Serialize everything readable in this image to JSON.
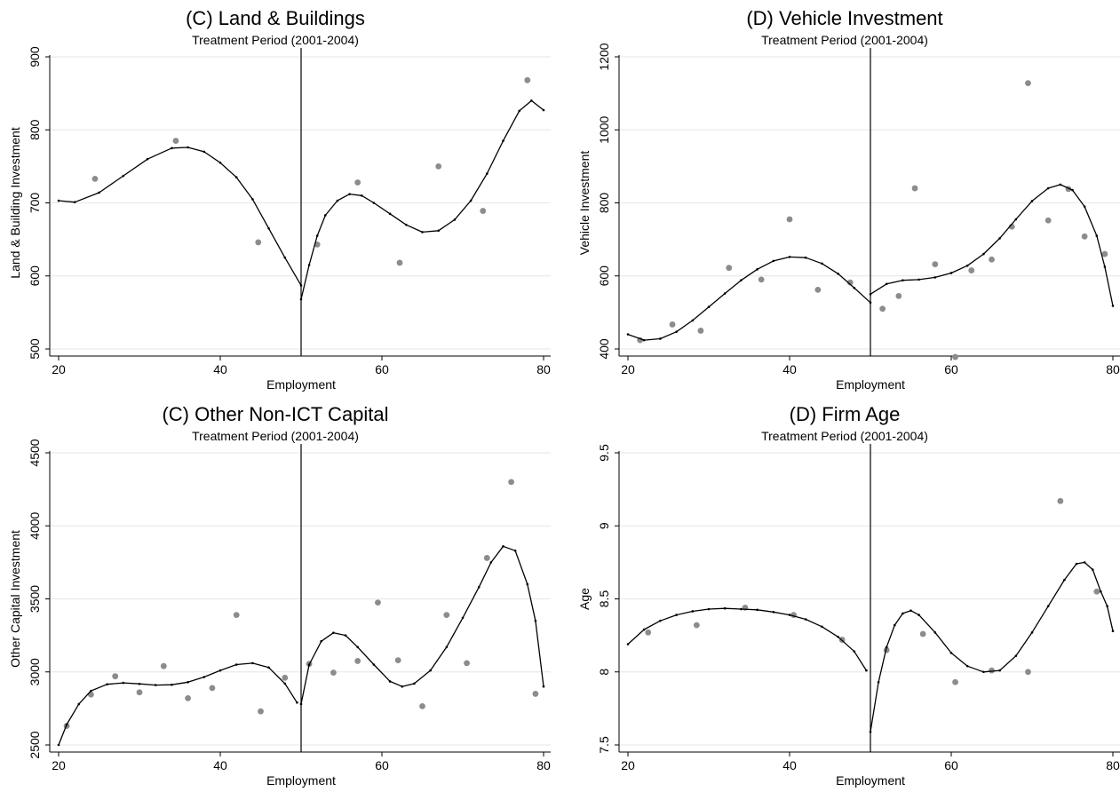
{
  "chart_data": [
    {
      "type": "scatter",
      "title": "(C) Land & Buildings",
      "subtitle": "Treatment Period (2001-2004)",
      "xlabel": "Employment",
      "ylabel": "Land & Building Investment",
      "xlim": [
        20,
        80
      ],
      "ylim": [
        500,
        900
      ],
      "xticks": [
        20,
        40,
        60,
        80
      ],
      "yticks": [
        500,
        600,
        700,
        800,
        900
      ],
      "cutoff": 50,
      "grid": true,
      "points": [
        [
          24.5,
          733
        ],
        [
          34.5,
          785
        ],
        [
          44.7,
          646
        ],
        [
          52,
          643
        ],
        [
          57,
          728
        ],
        [
          62.2,
          618
        ],
        [
          67,
          750
        ],
        [
          72.5,
          689
        ],
        [
          78,
          868
        ]
      ],
      "fit_left": [
        [
          20,
          703
        ],
        [
          22,
          701
        ],
        [
          25,
          714
        ],
        [
          28,
          737
        ],
        [
          31,
          760
        ],
        [
          34,
          775
        ],
        [
          36,
          776
        ],
        [
          38,
          770
        ],
        [
          40,
          755
        ],
        [
          42,
          735
        ],
        [
          44,
          705
        ],
        [
          46,
          665
        ],
        [
          48,
          625
        ],
        [
          50,
          587
        ]
      ],
      "fit_right": [
        [
          50,
          568
        ],
        [
          51,
          615
        ],
        [
          52,
          655
        ],
        [
          53,
          683
        ],
        [
          54.5,
          703
        ],
        [
          56,
          712
        ],
        [
          57.5,
          710
        ],
        [
          59,
          700
        ],
        [
          61,
          685
        ],
        [
          63,
          670
        ],
        [
          65,
          660
        ],
        [
          67,
          662
        ],
        [
          69,
          677
        ],
        [
          71,
          703
        ],
        [
          73,
          740
        ],
        [
          75,
          785
        ],
        [
          77,
          826
        ],
        [
          78.5,
          840
        ],
        [
          80,
          827
        ]
      ]
    },
    {
      "type": "scatter",
      "title": "(D) Vehicle Investment",
      "subtitle": "Treatment Period (2001-2004)",
      "xlabel": "Employment",
      "ylabel": "Vehicle Investment",
      "xlim": [
        20,
        80
      ],
      "ylim": [
        400,
        1200
      ],
      "xticks": [
        20,
        40,
        60,
        80
      ],
      "yticks": [
        400,
        600,
        800,
        1000,
        1200
      ],
      "cutoff": 50,
      "grid": true,
      "points": [
        [
          21.5,
          424
        ],
        [
          25.5,
          467
        ],
        [
          29,
          450
        ],
        [
          32.5,
          622
        ],
        [
          36.5,
          590
        ],
        [
          40,
          755
        ],
        [
          43.5,
          562
        ],
        [
          47.5,
          582
        ],
        [
          51.5,
          510
        ],
        [
          53.5,
          545
        ],
        [
          55.5,
          840
        ],
        [
          58,
          632
        ],
        [
          60.5,
          378
        ],
        [
          62.5,
          615
        ],
        [
          65,
          645
        ],
        [
          67.5,
          735
        ],
        [
          69.5,
          1128
        ],
        [
          72,
          752
        ],
        [
          74.5,
          838
        ],
        [
          76.5,
          708
        ],
        [
          79,
          660
        ]
      ],
      "fit_left": [
        [
          20,
          440
        ],
        [
          22,
          424
        ],
        [
          24,
          428
        ],
        [
          26,
          447
        ],
        [
          28,
          478
        ],
        [
          30,
          515
        ],
        [
          32,
          552
        ],
        [
          34,
          588
        ],
        [
          36,
          618
        ],
        [
          38,
          641
        ],
        [
          40,
          652
        ],
        [
          42,
          650
        ],
        [
          44,
          634
        ],
        [
          46,
          606
        ],
        [
          48,
          567
        ],
        [
          50,
          527
        ]
      ],
      "fit_right": [
        [
          50,
          550
        ],
        [
          52,
          578
        ],
        [
          54,
          588
        ],
        [
          56,
          590
        ],
        [
          58,
          596
        ],
        [
          60,
          608
        ],
        [
          62,
          628
        ],
        [
          64,
          660
        ],
        [
          66,
          703
        ],
        [
          68,
          755
        ],
        [
          70,
          805
        ],
        [
          72,
          840
        ],
        [
          73.5,
          850
        ],
        [
          75,
          835
        ],
        [
          76.5,
          790
        ],
        [
          78,
          710
        ],
        [
          79,
          625
        ],
        [
          80,
          518
        ]
      ]
    },
    {
      "type": "scatter",
      "title": "(C) Other Non-ICT Capital",
      "subtitle": "Treatment Period (2001-2004)",
      "xlabel": "Employment",
      "ylabel": "Other Capital Investment",
      "xlim": [
        20,
        80
      ],
      "ylim": [
        2500,
        4500
      ],
      "xticks": [
        20,
        40,
        60,
        80
      ],
      "yticks": [
        2500,
        3000,
        3500,
        4000,
        4500
      ],
      "cutoff": 50,
      "grid": true,
      "points": [
        [
          21,
          2630
        ],
        [
          24,
          2845
        ],
        [
          27,
          2970
        ],
        [
          30,
          2860
        ],
        [
          33,
          3040
        ],
        [
          36,
          2820
        ],
        [
          39,
          2890
        ],
        [
          42,
          3390
        ],
        [
          45,
          2730
        ],
        [
          48,
          2960
        ],
        [
          51,
          3055
        ],
        [
          54,
          2995
        ],
        [
          57,
          3075
        ],
        [
          59.5,
          3475
        ],
        [
          62,
          3080
        ],
        [
          65,
          2765
        ],
        [
          68,
          3390
        ],
        [
          70.5,
          3060
        ],
        [
          73,
          3780
        ],
        [
          76,
          4300
        ],
        [
          79,
          2850
        ]
      ],
      "fit_left": [
        [
          20,
          2500
        ],
        [
          21,
          2640
        ],
        [
          22.5,
          2780
        ],
        [
          24,
          2870
        ],
        [
          26,
          2915
        ],
        [
          28,
          2925
        ],
        [
          30,
          2918
        ],
        [
          32,
          2910
        ],
        [
          34,
          2912
        ],
        [
          36,
          2930
        ],
        [
          38,
          2965
        ],
        [
          40,
          3010
        ],
        [
          42,
          3050
        ],
        [
          44,
          3060
        ],
        [
          46,
          3030
        ],
        [
          48,
          2920
        ],
        [
          49.5,
          2790
        ]
      ],
      "fit_right": [
        [
          50,
          2780
        ],
        [
          51,
          3050
        ],
        [
          52.5,
          3210
        ],
        [
          54,
          3268
        ],
        [
          55.5,
          3250
        ],
        [
          57,
          3170
        ],
        [
          59,
          3050
        ],
        [
          61,
          2935
        ],
        [
          62.5,
          2900
        ],
        [
          64,
          2920
        ],
        [
          66,
          3010
        ],
        [
          68,
          3170
        ],
        [
          70,
          3370
        ],
        [
          72,
          3580
        ],
        [
          73.5,
          3750
        ],
        [
          75,
          3860
        ],
        [
          76.5,
          3830
        ],
        [
          78,
          3600
        ],
        [
          79,
          3350
        ],
        [
          80,
          2900
        ]
      ]
    },
    {
      "type": "scatter",
      "title": "(D) Firm Age",
      "subtitle": "Treatment Period (2001-2004)",
      "xlabel": "Employment",
      "ylabel": "Age",
      "xlim": [
        20,
        80
      ],
      "ylim": [
        7.5,
        9.5
      ],
      "xticks": [
        20,
        40,
        60,
        80
      ],
      "yticks": [
        7.5,
        8,
        8.5,
        9,
        9.5
      ],
      "cutoff": 50,
      "grid": true,
      "points": [
        [
          22.5,
          8.27
        ],
        [
          28.5,
          8.32
        ],
        [
          34.5,
          8.44
        ],
        [
          40.5,
          8.39
        ],
        [
          46.5,
          8.22
        ],
        [
          52,
          8.15
        ],
        [
          56.5,
          8.26
        ],
        [
          60.5,
          7.93
        ],
        [
          65,
          8.01
        ],
        [
          69.5,
          8.0
        ],
        [
          73.5,
          9.17
        ],
        [
          78,
          8.55
        ]
      ],
      "fit_left": [
        [
          20,
          8.19
        ],
        [
          22,
          8.29
        ],
        [
          24,
          8.35
        ],
        [
          26,
          8.39
        ],
        [
          28,
          8.415
        ],
        [
          30,
          8.43
        ],
        [
          32,
          8.435
        ],
        [
          34,
          8.43
        ],
        [
          36,
          8.425
        ],
        [
          38,
          8.41
        ],
        [
          40,
          8.39
        ],
        [
          42,
          8.36
        ],
        [
          44,
          8.31
        ],
        [
          46,
          8.24
        ],
        [
          48,
          8.14
        ],
        [
          49.5,
          8.01
        ]
      ],
      "fit_right": [
        [
          50,
          7.59
        ],
        [
          51,
          7.93
        ],
        [
          52,
          8.17
        ],
        [
          53,
          8.32
        ],
        [
          54,
          8.4
        ],
        [
          55,
          8.42
        ],
        [
          56,
          8.39
        ],
        [
          58,
          8.27
        ],
        [
          60,
          8.13
        ],
        [
          62,
          8.04
        ],
        [
          64,
          8.0
        ],
        [
          66,
          8.01
        ],
        [
          68,
          8.11
        ],
        [
          70,
          8.27
        ],
        [
          72,
          8.45
        ],
        [
          74,
          8.63
        ],
        [
          75.5,
          8.74
        ],
        [
          76.5,
          8.75
        ],
        [
          77.5,
          8.7
        ],
        [
          78.5,
          8.55
        ],
        [
          79.3,
          8.45
        ],
        [
          80,
          8.28
        ]
      ]
    }
  ]
}
